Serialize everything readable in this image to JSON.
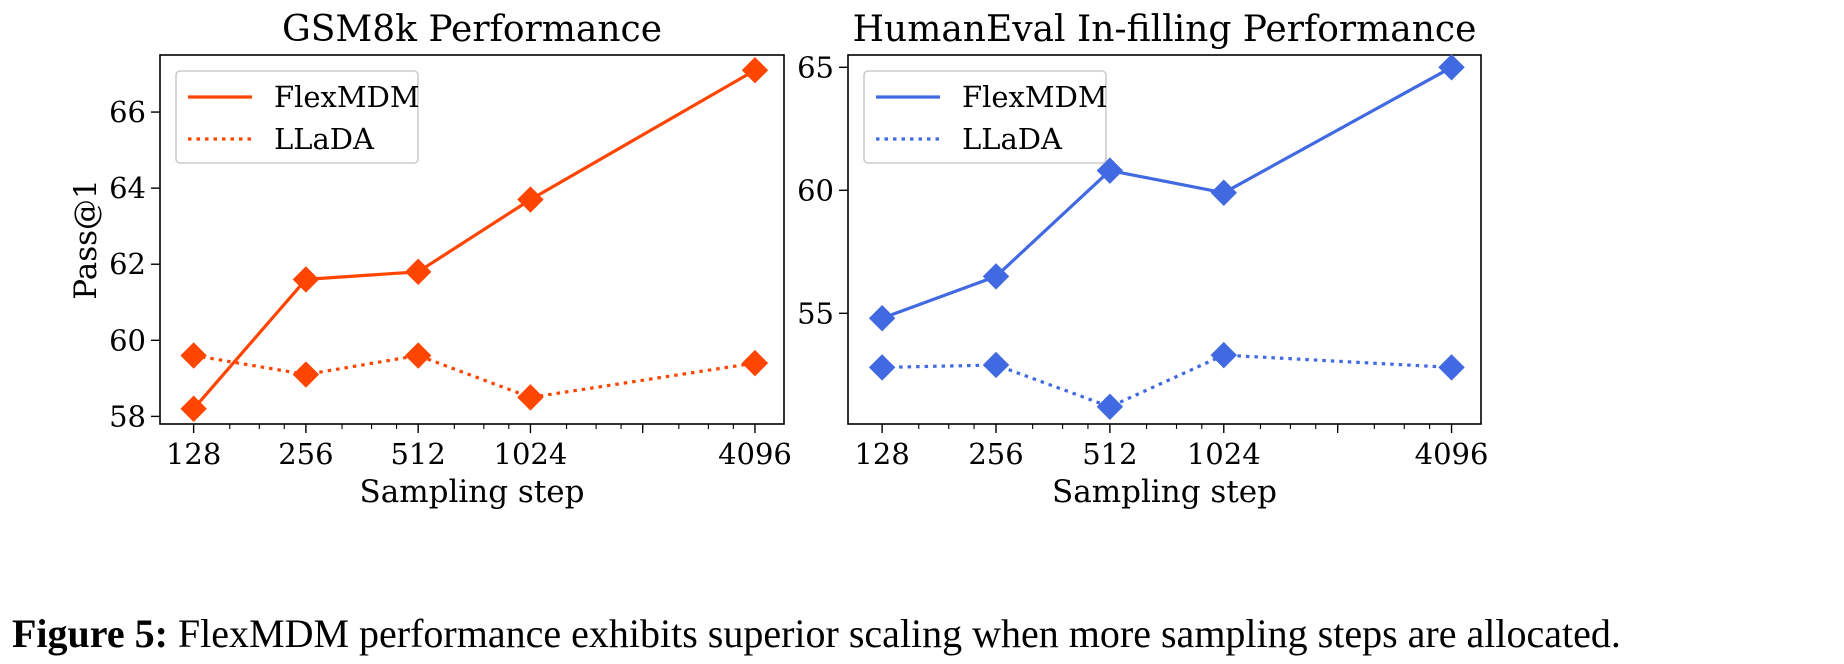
{
  "chart_data": [
    {
      "type": "line",
      "title": "GSM8k Performance",
      "xlabel": "Sampling step",
      "ylabel": "Pass@1",
      "x_scale": "log2",
      "x": [
        128,
        256,
        512,
        1024,
        4096
      ],
      "xticks": [
        "128",
        "256",
        "512",
        "1024",
        "4096"
      ],
      "xlim": [
        104,
        4900
      ],
      "ylim": [
        57.8,
        67.5
      ],
      "yticks": [
        "58",
        "60",
        "62",
        "64",
        "66"
      ],
      "color": "#FF4500",
      "legend": "top-left",
      "grid": false,
      "series": [
        {
          "name": "FlexMDM",
          "style": "solid",
          "values": [
            58.2,
            61.6,
            61.8,
            63.7,
            67.1
          ]
        },
        {
          "name": "LLaDA",
          "style": "dotted",
          "values": [
            59.6,
            59.1,
            59.6,
            58.5,
            59.4
          ]
        }
      ]
    },
    {
      "type": "line",
      "title": "HumanEval In-filling Performance",
      "xlabel": "Sampling step",
      "ylabel": "",
      "x_scale": "log2",
      "x": [
        128,
        256,
        512,
        1024,
        4096
      ],
      "xticks": [
        "128",
        "256",
        "512",
        "1024",
        "4096"
      ],
      "xlim": [
        104,
        4900
      ],
      "ylim": [
        50.5,
        65.5
      ],
      "yticks": [
        "55",
        "60",
        "65"
      ],
      "color": "#4169E1",
      "legend": "top-left",
      "grid": false,
      "series": [
        {
          "name": "FlexMDM",
          "style": "solid",
          "values": [
            54.8,
            56.5,
            60.8,
            59.9,
            65.0
          ]
        },
        {
          "name": "LLaDA",
          "style": "dotted",
          "values": [
            52.8,
            52.9,
            51.2,
            53.3,
            52.8
          ]
        }
      ]
    }
  ],
  "caption": {
    "label": "Figure 5:",
    "text": " FlexMDM performance exhibits superior scaling when more sampling steps are allocated."
  }
}
